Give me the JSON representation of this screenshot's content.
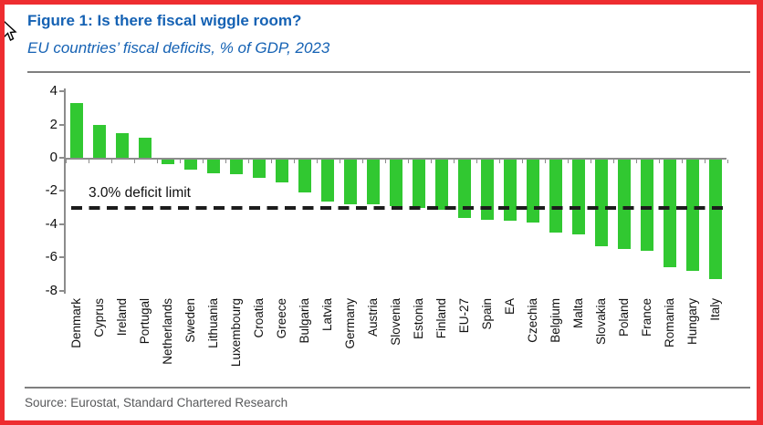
{
  "header": {
    "title": "Figure 1: Is there fiscal wiggle room?",
    "subtitle": "EU countries’ fiscal deficits, % of GDP, 2023"
  },
  "footer": {
    "source": "Source: Eurostat, Standard Chartered Research"
  },
  "icons": {
    "cursor": "arrow-cursor-icon"
  },
  "colors": {
    "bar_green": "#31c831",
    "title_blue": "#1562b4",
    "frame_red": "#ee2d30",
    "axis_gray": "#8c8c8c",
    "limit_line": "#1c1c1c",
    "source_gray": "#58595b"
  },
  "chart_data": {
    "type": "bar",
    "title": "Figure 1: Is there fiscal wiggle room?",
    "subtitle": "EU countries’ fiscal deficits, % of GDP, 2023",
    "categories": [
      "Denmark",
      "Cyprus",
      "Ireland",
      "Portugal",
      "Netherlands",
      "Sweden",
      "Lithuania",
      "Luxembourg",
      "Croatia",
      "Greece",
      "Bulgaria",
      "Latvia",
      "Germany",
      "Austria",
      "Slovenia",
      "Estonia",
      "Finland",
      "EU-27",
      "Spain",
      "EA",
      "Czechia",
      "Belgium",
      "Malta",
      "Slovakia",
      "Poland",
      "France",
      "Romania",
      "Hungary",
      "Italy"
    ],
    "values": [
      3.3,
      2.0,
      1.5,
      1.2,
      -0.3,
      -0.6,
      -0.8,
      -0.9,
      -1.1,
      -1.4,
      -2.0,
      -2.5,
      -2.7,
      -2.7,
      -2.8,
      -2.9,
      -3.0,
      -3.5,
      -3.6,
      -3.7,
      -3.8,
      -4.4,
      -4.5,
      -5.2,
      -5.4,
      -5.5,
      -6.5,
      -6.7,
      -7.2
    ],
    "xlabel": "",
    "ylabel": "",
    "ylim": [
      -8,
      4
    ],
    "yticks": [
      4,
      2,
      0,
      -2,
      -4,
      -6,
      -8
    ],
    "reference_line": {
      "value": -3.0,
      "label": "3.0% deficit limit"
    },
    "grid": false,
    "legend": false,
    "bar_color": "#31c831"
  }
}
